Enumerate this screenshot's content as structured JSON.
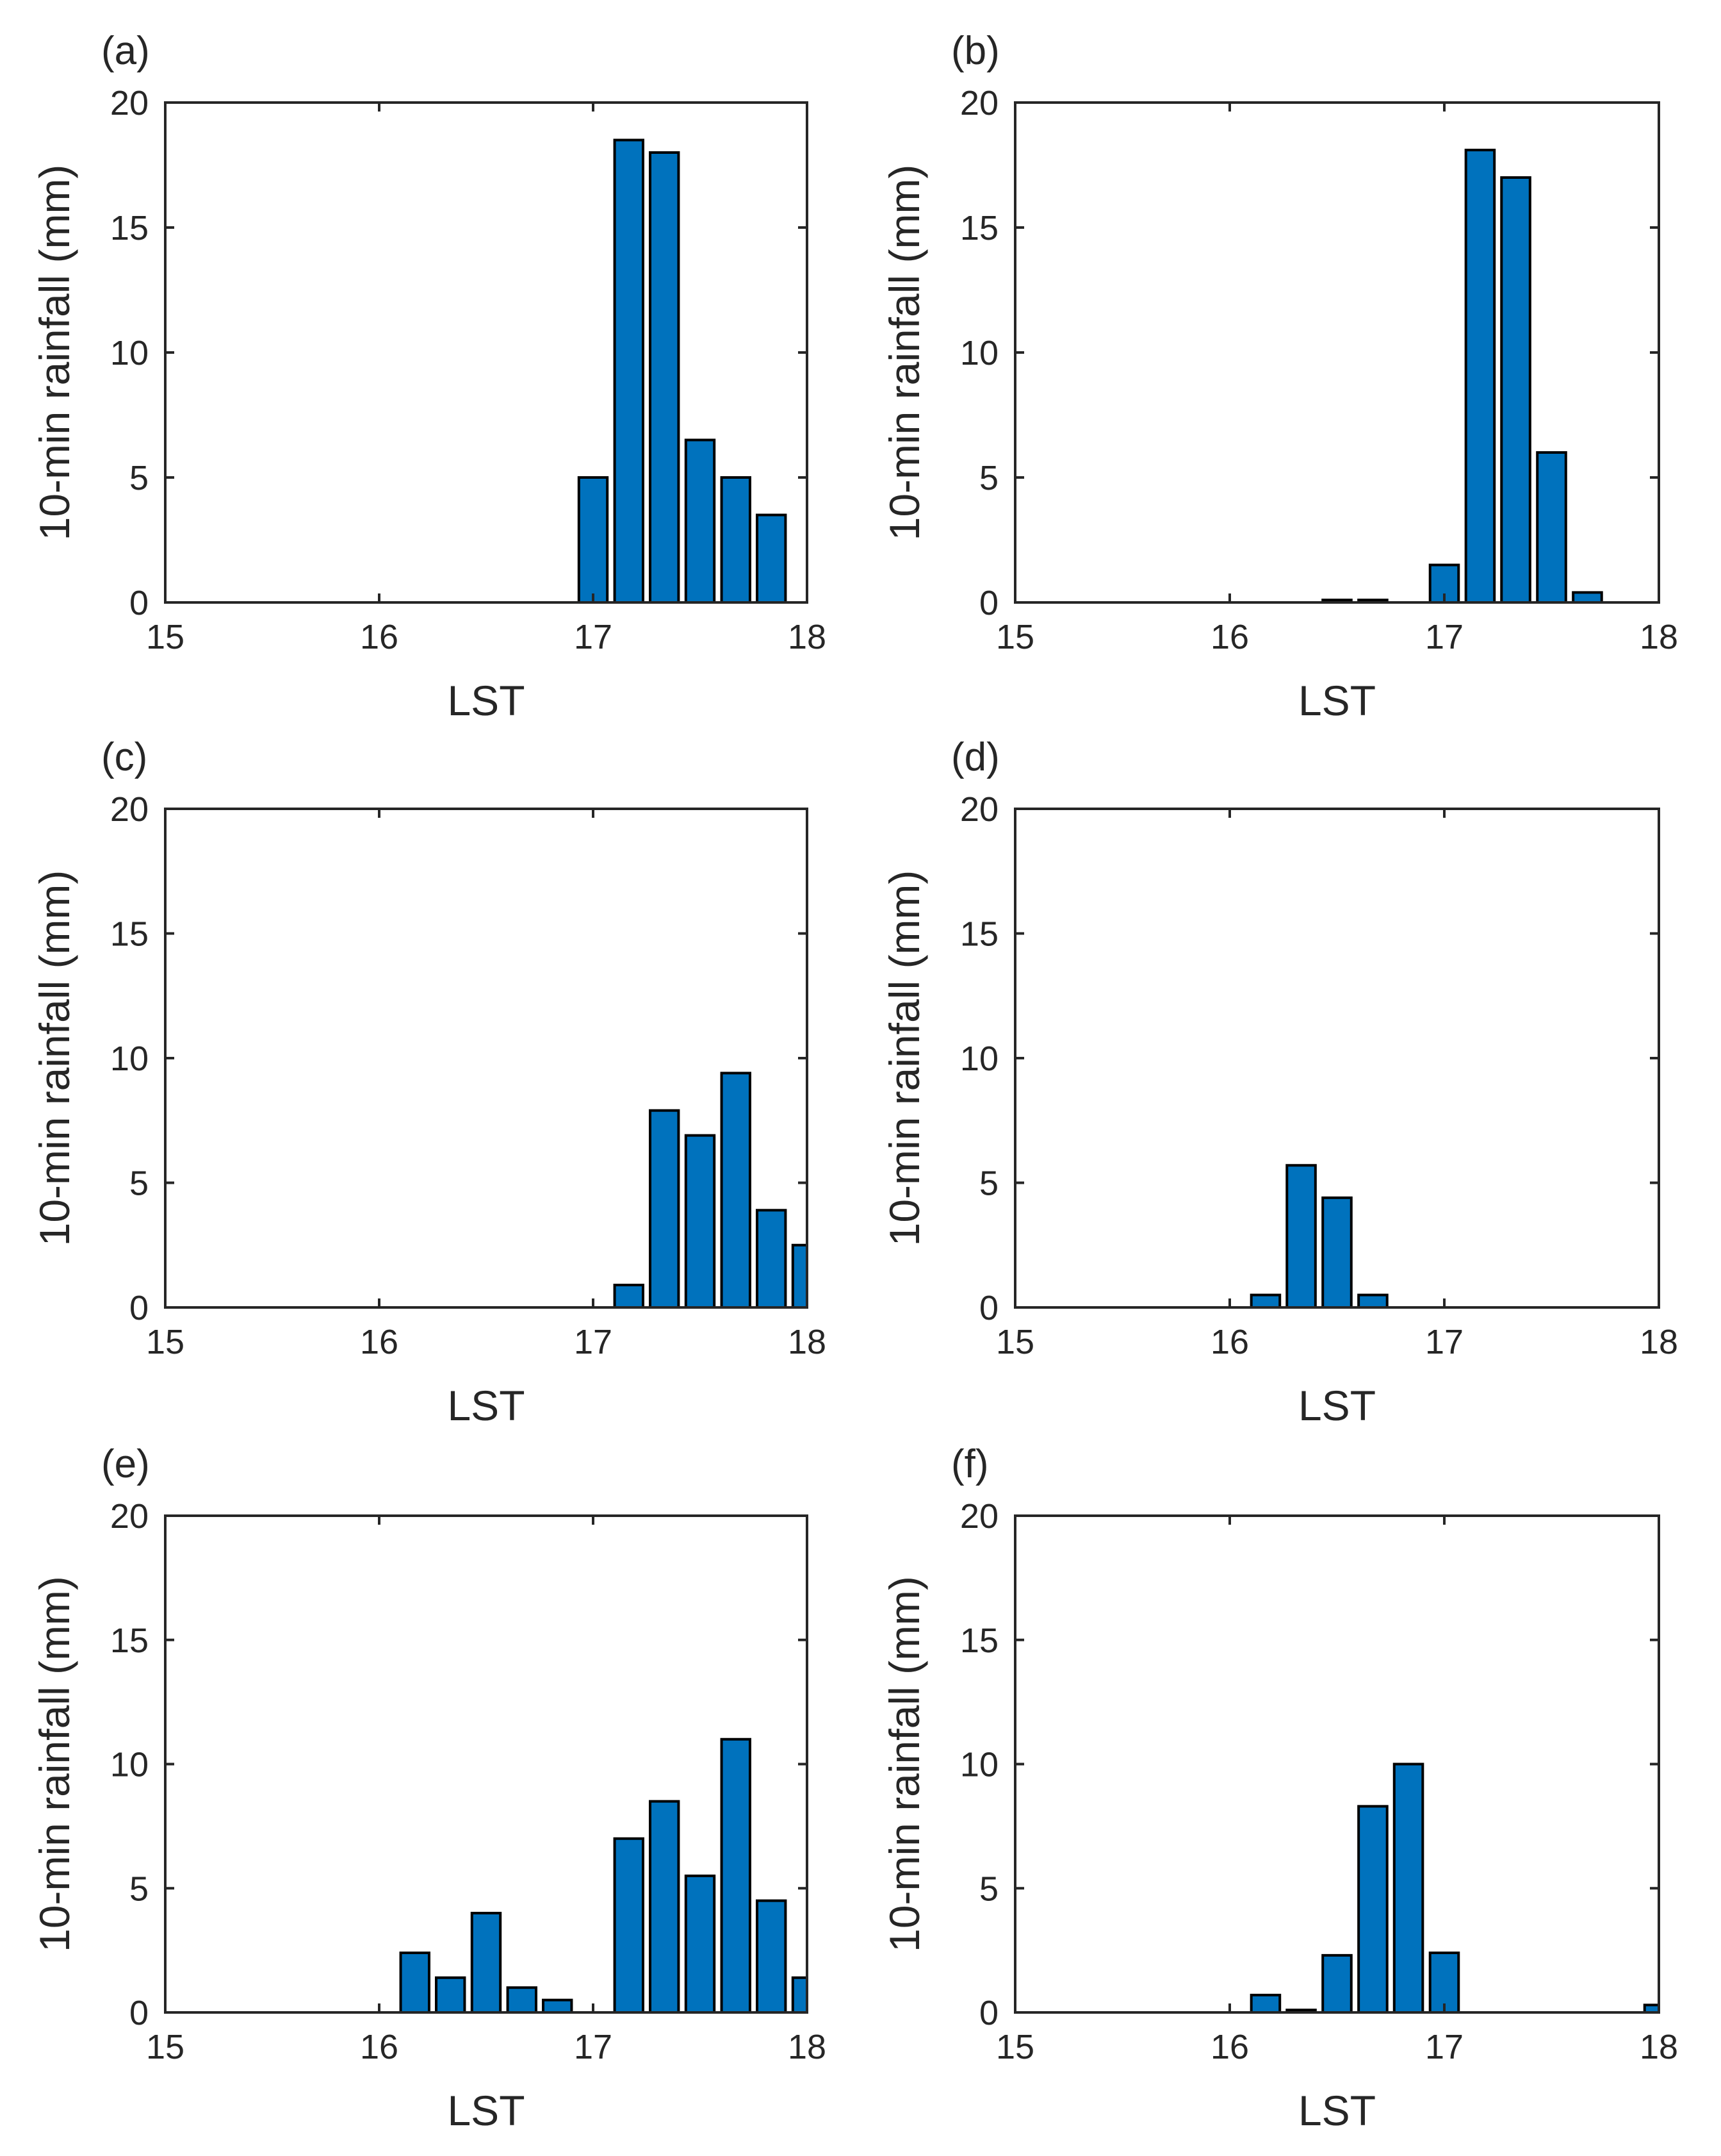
{
  "figure": {
    "bar_color": "#0072BD",
    "edge_color": "#000000",
    "axis_color": "#262626"
  },
  "chart_data": [
    {
      "panel": "(a)",
      "type": "bar",
      "xlabel": "LST",
      "ylabel": "10-min rainfall (mm)",
      "xlim": [
        15,
        18
      ],
      "ylim": [
        0,
        20
      ],
      "xticks": [
        "15",
        "16",
        "17",
        "18"
      ],
      "yticks": [
        "0",
        "5",
        "10",
        "15",
        "20"
      ],
      "bar_width": 0.133,
      "x": [
        17.0,
        17.167,
        17.333,
        17.5,
        17.667,
        17.833
      ],
      "values": [
        5.0,
        18.5,
        18.0,
        6.5,
        5.0,
        3.5
      ]
    },
    {
      "panel": "(b)",
      "type": "bar",
      "xlabel": "LST",
      "ylabel": "10-min rainfall (mm)",
      "xlim": [
        15,
        18
      ],
      "ylim": [
        0,
        20
      ],
      "xticks": [
        "15",
        "16",
        "17",
        "18"
      ],
      "yticks": [
        "0",
        "5",
        "10",
        "15",
        "20"
      ],
      "bar_width": 0.133,
      "x": [
        16.5,
        16.667,
        17.0,
        17.167,
        17.333,
        17.5,
        17.667
      ],
      "values": [
        0.1,
        0.1,
        1.5,
        18.1,
        17.0,
        6.0,
        0.4
      ]
    },
    {
      "panel": "(c)",
      "type": "bar",
      "xlabel": "LST",
      "ylabel": "10-min rainfall (mm)",
      "xlim": [
        15,
        18
      ],
      "ylim": [
        0,
        20
      ],
      "xticks": [
        "15",
        "16",
        "17",
        "18"
      ],
      "yticks": [
        "0",
        "5",
        "10",
        "15",
        "20"
      ],
      "bar_width": 0.133,
      "x": [
        17.167,
        17.333,
        17.5,
        17.667,
        17.833,
        18.0
      ],
      "values": [
        0.9,
        7.9,
        6.9,
        9.4,
        3.9,
        2.5
      ]
    },
    {
      "panel": "(d)",
      "type": "bar",
      "xlabel": "LST",
      "ylabel": "10-min rainfall (mm)",
      "xlim": [
        15,
        18
      ],
      "ylim": [
        0,
        20
      ],
      "xticks": [
        "15",
        "16",
        "17",
        "18"
      ],
      "yticks": [
        "0",
        "5",
        "10",
        "15",
        "20"
      ],
      "bar_width": 0.133,
      "x": [
        16.167,
        16.333,
        16.5,
        16.667
      ],
      "values": [
        0.5,
        5.7,
        4.4,
        0.5
      ]
    },
    {
      "panel": "(e)",
      "type": "bar",
      "xlabel": "LST",
      "ylabel": "10-min rainfall (mm)",
      "xlim": [
        15,
        18
      ],
      "ylim": [
        0,
        20
      ],
      "xticks": [
        "15",
        "16",
        "17",
        "18"
      ],
      "yticks": [
        "0",
        "5",
        "10",
        "15",
        "20"
      ],
      "bar_width": 0.133,
      "x": [
        16.167,
        16.333,
        16.5,
        16.667,
        16.833,
        17.167,
        17.333,
        17.5,
        17.667,
        17.833,
        18.0
      ],
      "values": [
        2.4,
        1.4,
        4.0,
        1.0,
        0.5,
        7.0,
        8.5,
        5.5,
        11.0,
        4.5,
        1.4
      ]
    },
    {
      "panel": "(f)",
      "type": "bar",
      "xlabel": "LST",
      "ylabel": "10-min rainfall (mm)",
      "xlim": [
        15,
        18
      ],
      "ylim": [
        0,
        20
      ],
      "xticks": [
        "15",
        "16",
        "17",
        "18"
      ],
      "yticks": [
        "0",
        "5",
        "10",
        "15",
        "20"
      ],
      "bar_width": 0.133,
      "x": [
        16.167,
        16.333,
        16.5,
        16.667,
        16.833,
        17.0,
        18.0
      ],
      "values": [
        0.7,
        0.1,
        2.3,
        8.3,
        10.0,
        2.4,
        0.3
      ]
    }
  ]
}
